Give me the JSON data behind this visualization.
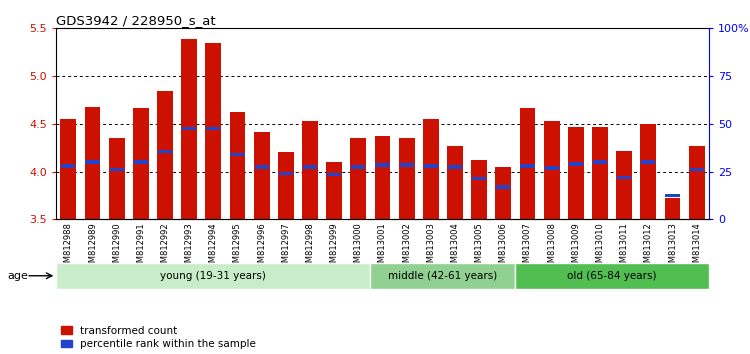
{
  "title": "GDS3942 / 228950_s_at",
  "samples": [
    "GSM812988",
    "GSM812989",
    "GSM812990",
    "GSM812991",
    "GSM812992",
    "GSM812993",
    "GSM812994",
    "GSM812995",
    "GSM812996",
    "GSM812997",
    "GSM812998",
    "GSM812999",
    "GSM813000",
    "GSM813001",
    "GSM813002",
    "GSM813003",
    "GSM813004",
    "GSM813005",
    "GSM813006",
    "GSM813007",
    "GSM813008",
    "GSM813009",
    "GSM813010",
    "GSM813011",
    "GSM813012",
    "GSM813013",
    "GSM813014"
  ],
  "red_values": [
    4.55,
    4.68,
    4.35,
    4.67,
    4.84,
    5.39,
    5.35,
    4.62,
    4.42,
    4.21,
    4.53,
    4.1,
    4.35,
    4.37,
    4.35,
    4.55,
    4.27,
    4.12,
    4.05,
    4.67,
    4.53,
    4.47,
    4.47,
    4.22,
    4.5,
    3.72,
    4.27
  ],
  "blue_values": [
    4.06,
    4.1,
    4.02,
    4.1,
    4.21,
    4.45,
    4.45,
    4.18,
    4.05,
    3.98,
    4.05,
    3.97,
    4.05,
    4.07,
    4.07,
    4.06,
    4.05,
    3.93,
    3.84,
    4.06,
    4.04,
    4.08,
    4.1,
    3.94,
    4.1,
    3.75,
    4.02
  ],
  "groups": [
    {
      "label": "young (19-31 years)",
      "start": 0,
      "end": 13,
      "color": "#c8edc8"
    },
    {
      "label": "middle (42-61 years)",
      "start": 13,
      "end": 19,
      "color": "#90d090"
    },
    {
      "label": "old (65-84 years)",
      "start": 19,
      "end": 27,
      "color": "#50be50"
    }
  ],
  "ylim": [
    3.5,
    5.5
  ],
  "y2lim": [
    0,
    100
  ],
  "y_ticks": [
    3.5,
    4.0,
    4.5,
    5.0,
    5.5
  ],
  "y2_ticks": [
    0,
    25,
    50,
    75,
    100
  ],
  "grid_values": [
    4.0,
    4.5,
    5.0
  ],
  "bar_color": "#cc1100",
  "blue_color": "#2244cc",
  "bar_width": 0.65,
  "age_label": "age",
  "legend_red": "transformed count",
  "legend_blue": "percentile rank within the sample",
  "tick_bg_color": "#d8d8d8"
}
